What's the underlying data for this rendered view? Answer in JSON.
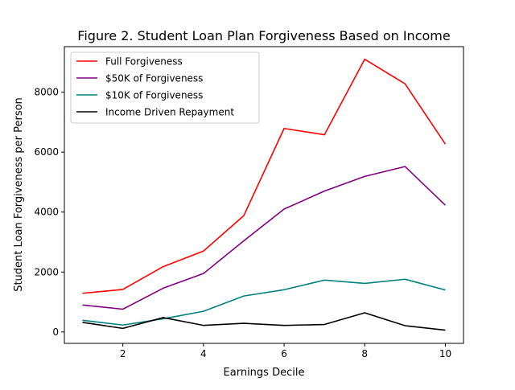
{
  "chart_data": {
    "type": "line",
    "title": "Figure 2. Student Loan Plan Forgiveness Based on Income",
    "xlabel": "Earnings Decile",
    "ylabel": "Student Loan Forgiveness per Person",
    "x": [
      1,
      2,
      3,
      4,
      5,
      6,
      7,
      8,
      9,
      10
    ],
    "xlim": [
      0.55,
      10.45
    ],
    "ylim": [
      -380,
      9520
    ],
    "xticks": [
      2,
      4,
      6,
      8,
      10
    ],
    "yticks": [
      0,
      2000,
      4000,
      6000,
      8000
    ],
    "grid": false,
    "legend_position": "top-left",
    "series": [
      {
        "name": "Full Forgiveness",
        "color": "#ff0000",
        "values": [
          1290,
          1420,
          2180,
          2700,
          3880,
          6790,
          6580,
          9100,
          8280,
          6270
        ]
      },
      {
        "name": "$50K of Forgiveness",
        "color": "#800080",
        "values": [
          900,
          760,
          1460,
          1950,
          3040,
          4100,
          4700,
          5190,
          5520,
          4230
        ]
      },
      {
        "name": "$10K of Forgiveness",
        "color": "#008080",
        "values": [
          390,
          230,
          440,
          690,
          1200,
          1410,
          1730,
          1620,
          1760,
          1400
        ]
      },
      {
        "name": "Income Driven Repayment",
        "color": "#000000",
        "values": [
          320,
          120,
          480,
          220,
          290,
          220,
          250,
          640,
          210,
          60
        ]
      }
    ]
  }
}
